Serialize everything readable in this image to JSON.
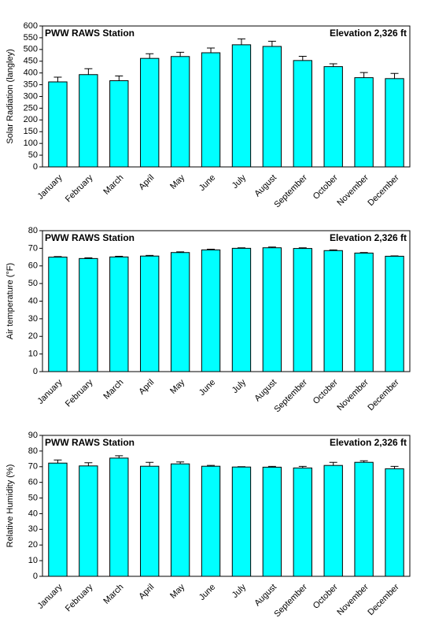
{
  "chart_data": [
    {
      "type": "bar",
      "annotations": [
        "PWW RAWS Station",
        "Elevation 2,326 ft"
      ],
      "y_label": "Solar Radiation (langley)",
      "categories": [
        "January",
        "February",
        "March",
        "April",
        "May",
        "June",
        "July",
        "August",
        "September",
        "October",
        "November",
        "December"
      ],
      "values": [
        362,
        393,
        367,
        462,
        470,
        486,
        520,
        513,
        453,
        427,
        380,
        376
      ],
      "errors": [
        20,
        25,
        20,
        20,
        18,
        20,
        25,
        22,
        18,
        12,
        22,
        22
      ],
      "color": "#00ffff",
      "ylim": [
        0,
        600
      ],
      "yticks": [
        0,
        50,
        100,
        150,
        200,
        250,
        300,
        350,
        400,
        450,
        500,
        550,
        600
      ]
    },
    {
      "type": "bar",
      "annotations": [
        "PWW RAWS Station",
        "Elevation 2,326 ft"
      ],
      "y_label": "Air temperature (°F)",
      "categories": [
        "January",
        "February",
        "March",
        "April",
        "May",
        "June",
        "July",
        "August",
        "September",
        "October",
        "November",
        "December"
      ],
      "values": [
        65,
        64.2,
        65.1,
        65.6,
        67.6,
        69.1,
        70,
        70.3,
        69.9,
        68.7,
        67.3,
        65.5
      ],
      "errors": [
        0.3,
        0.4,
        0.4,
        0.4,
        0.4,
        0.4,
        0.3,
        0.4,
        0.4,
        0.4,
        0.3,
        0.2
      ],
      "color": "#00ffff",
      "ylim": [
        0,
        80
      ],
      "yticks": [
        0,
        10,
        20,
        30,
        40,
        50,
        60,
        70,
        80
      ]
    },
    {
      "type": "bar",
      "annotations": [
        "PWW RAWS Station",
        "Elevation 2,326 ft"
      ],
      "y_label": "Relative Humidity (%)",
      "categories": [
        "January",
        "February",
        "March",
        "April",
        "May",
        "June",
        "July",
        "August",
        "September",
        "October",
        "November",
        "December"
      ],
      "values": [
        72.3,
        70.5,
        75.5,
        70.3,
        71.8,
        70.3,
        69.8,
        69.7,
        69.2,
        70.8,
        72.8,
        68.7
      ],
      "errors": [
        2,
        2,
        1.5,
        2.5,
        1.2,
        0.5,
        0.2,
        0.5,
        1,
        2,
        1,
        1.5
      ],
      "color": "#00ffff",
      "ylim": [
        0,
        90
      ],
      "yticks": [
        0,
        10,
        20,
        30,
        40,
        50,
        60,
        70,
        80,
        90
      ]
    }
  ]
}
